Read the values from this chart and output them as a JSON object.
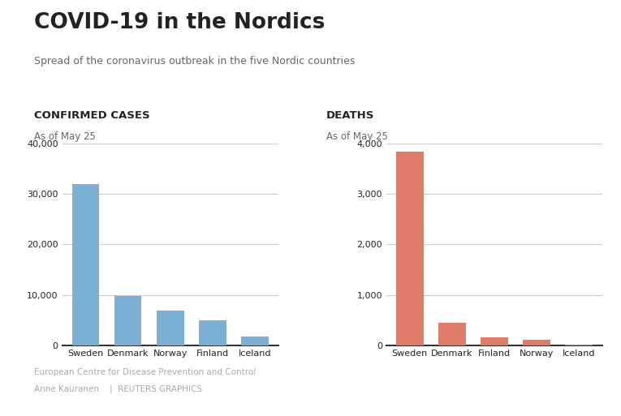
{
  "title": "COVID-19 in the Nordics",
  "subtitle": "Spread of the coronavirus outbreak in the five Nordic countries",
  "cases_label": "CONFIRMED CASES",
  "deaths_label": "DEATHS",
  "as_of": "As of May 25",
  "cases_countries": [
    "Sweden",
    "Denmark",
    "Norway",
    "Finland",
    "Iceland"
  ],
  "cases_values": [
    32000,
    9800,
    6800,
    5000,
    1800
  ],
  "deaths_countries": [
    "Sweden",
    "Denmark",
    "Finland",
    "Norway",
    "Iceland"
  ],
  "deaths_values": [
    3831,
    443,
    160,
    117,
    10
  ],
  "cases_color": "#7bafd4",
  "deaths_color": "#e07b6a",
  "cases_ylim": [
    0,
    40000
  ],
  "deaths_ylim": [
    0,
    4000
  ],
  "cases_yticks": [
    0,
    10000,
    20000,
    30000,
    40000
  ],
  "deaths_yticks": [
    0,
    1000,
    2000,
    3000,
    4000
  ],
  "source_line1": "European Centre for Disease Prevention and Control",
  "source_line2": "Anne Kauranen    |  REUTERS GRAPHICS",
  "bg_color": "#ffffff",
  "grid_color": "#cccccc",
  "axis_label_color": "#888888",
  "title_color": "#222222",
  "subtitle_color": "#666666",
  "footer_color": "#aaaaaa"
}
